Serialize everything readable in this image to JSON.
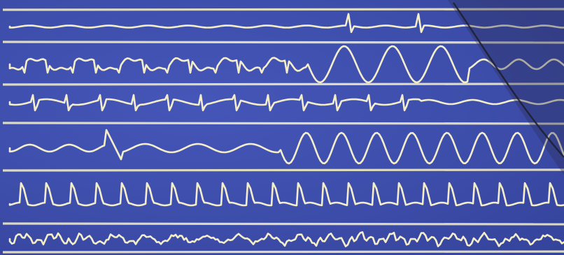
{
  "image": {
    "background_color": "#3d4daa",
    "trace_color": "#f3eec9",
    "strips": [
      {
        "pattern": "sinus-rhythm-sparse-qrs"
      },
      {
        "pattern": "irregular-then-large-oscillations"
      },
      {
        "pattern": "inverted-complexes"
      },
      {
        "pattern": "torsade-like-burst"
      },
      {
        "pattern": "regular-tall-spikes"
      },
      {
        "pattern": "low-amplitude-irregular"
      }
    ]
  }
}
